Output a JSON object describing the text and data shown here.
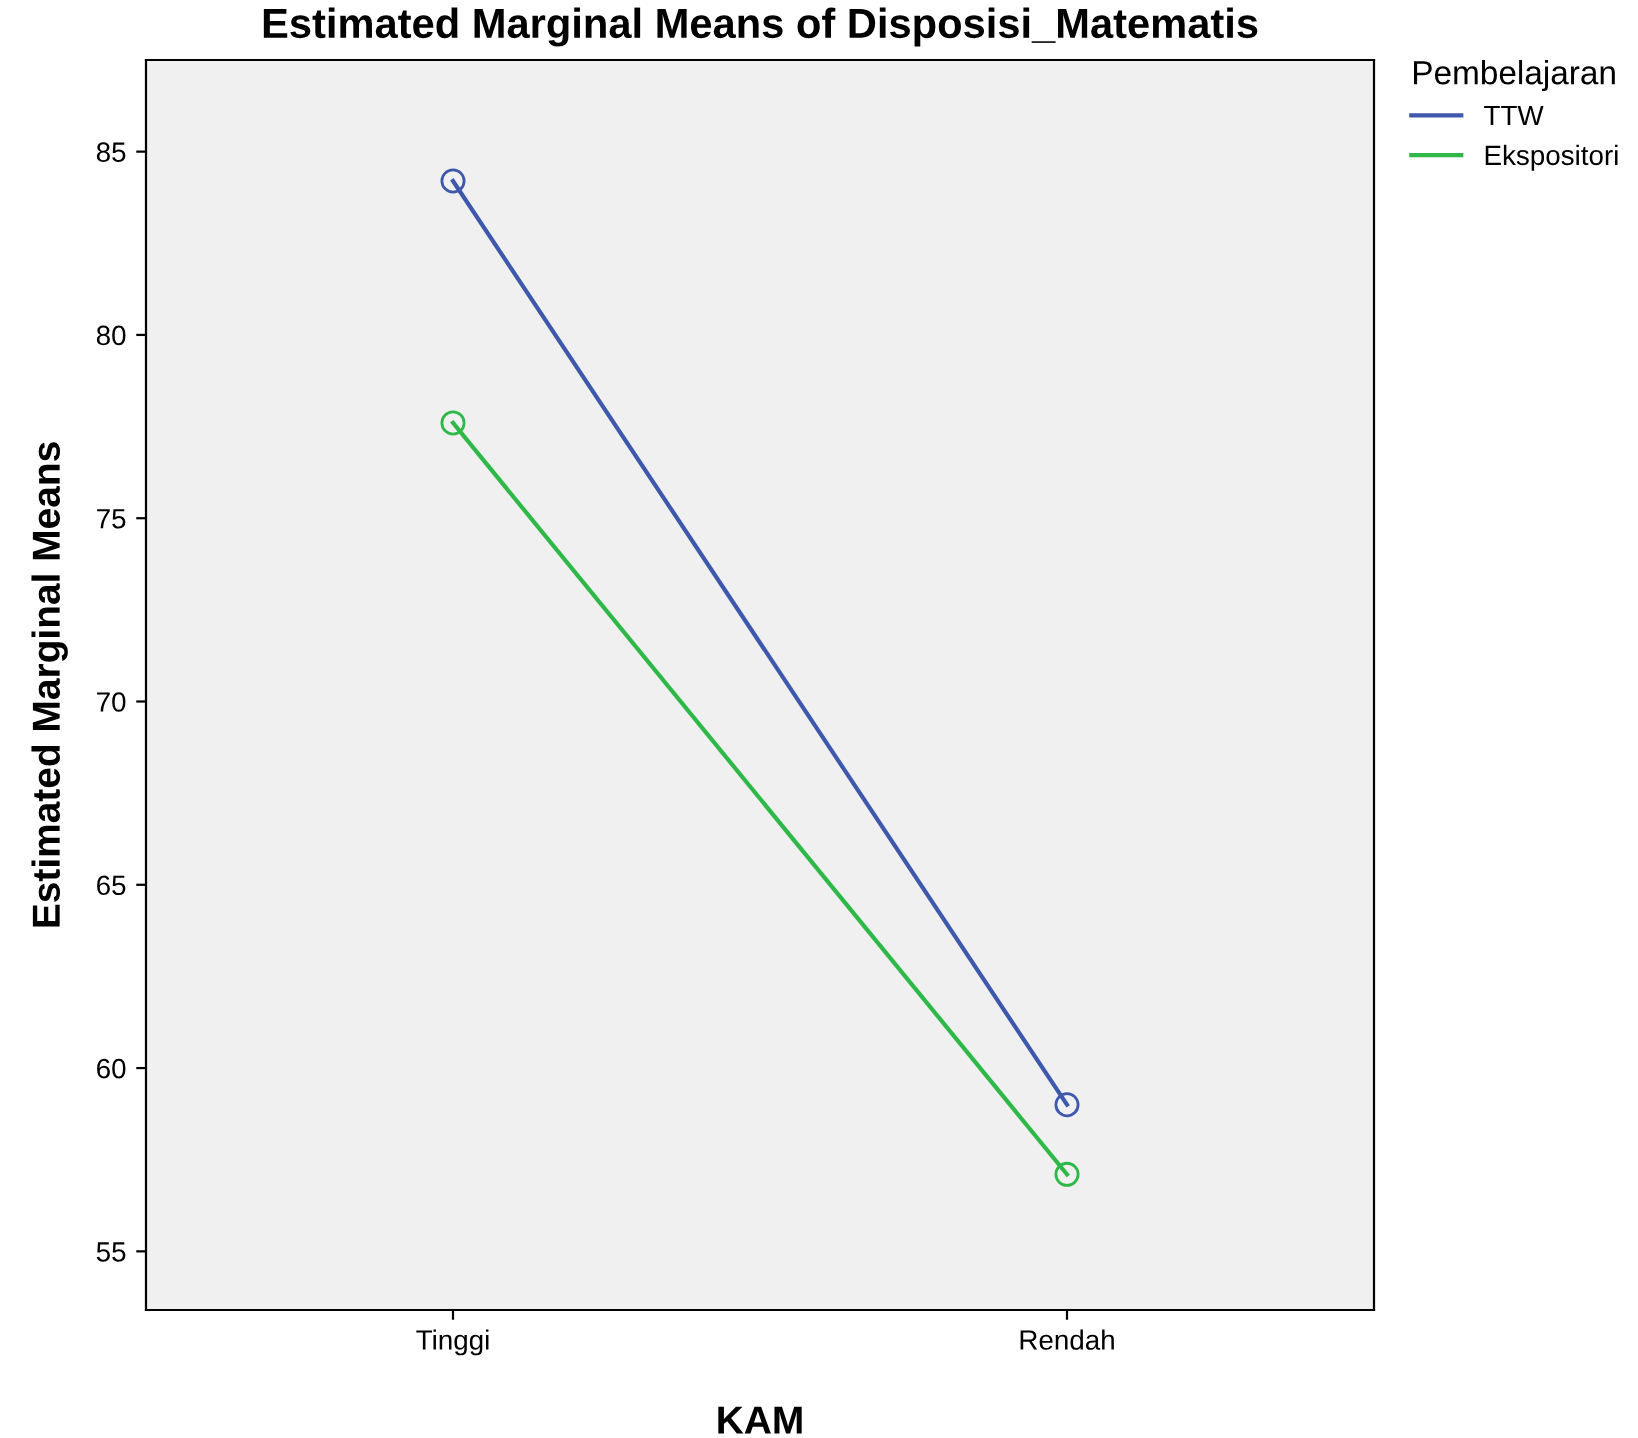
{
  "chart_data": {
    "type": "line",
    "title": "Estimated Marginal Means of Disposisi_Matematis",
    "xlabel": "KAM",
    "ylabel": "Estimated Marginal Means",
    "legend_title": "Pembelajaran",
    "categories": [
      "Tinggi",
      "Rendah"
    ],
    "series": [
      {
        "name": "TTW",
        "color": "#3e58ac",
        "values": [
          84.2,
          59.0
        ]
      },
      {
        "name": "Ekspositori",
        "color": "#2eb848",
        "values": [
          77.6,
          57.1
        ]
      }
    ],
    "ylim": [
      53.4,
      87.5
    ],
    "yticks": [
      55,
      60,
      65,
      70,
      75,
      80,
      85
    ],
    "marker": "circle",
    "line_style": "solid",
    "legend": "top right",
    "grid": false
  }
}
